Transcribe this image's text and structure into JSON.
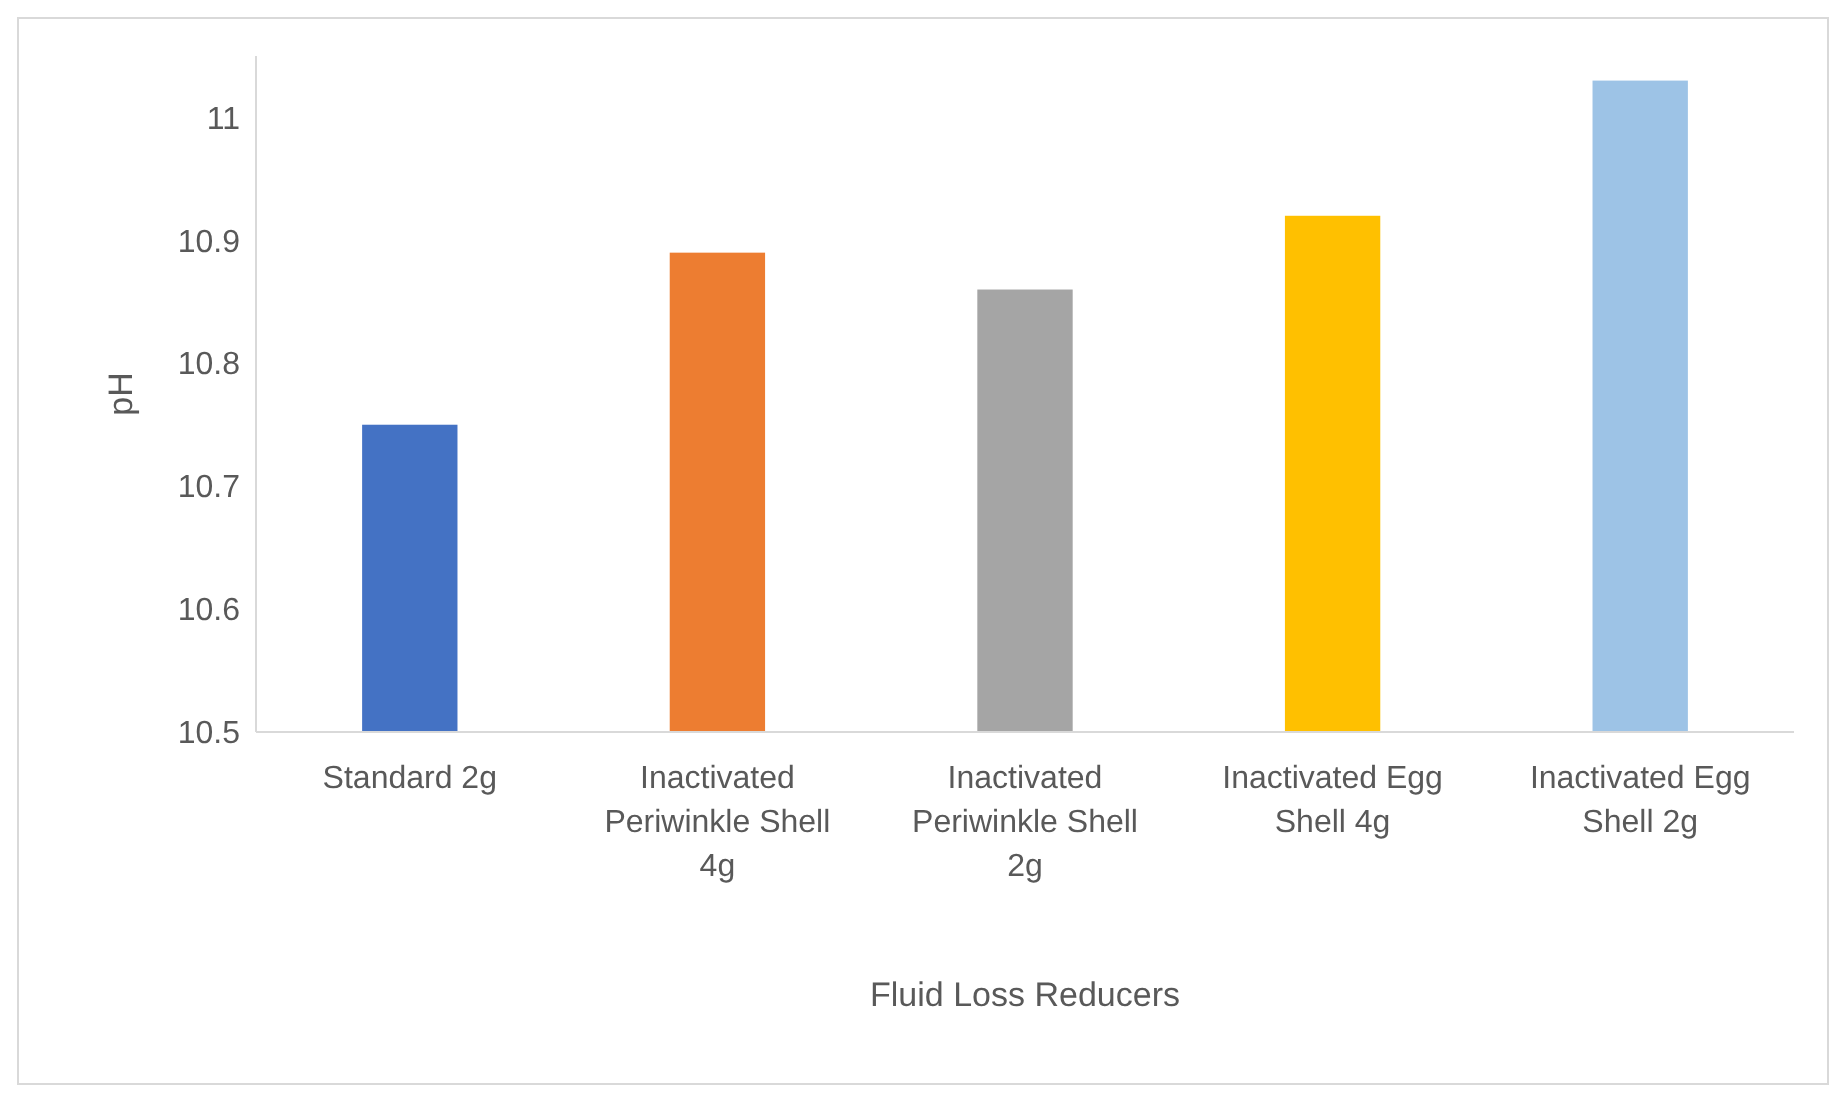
{
  "chart_data": {
    "type": "bar",
    "xlabel": "Fluid Loss Reducers",
    "ylabel": "pH",
    "categories": [
      "Standard 2g",
      "Inactivated Periwinkle Shell 4g",
      "Inactivated Periwinkle Shell 2g",
      "Inactivated Egg Shell 4g",
      "Inactivated Egg Shell 2g"
    ],
    "values": [
      10.75,
      10.89,
      10.86,
      10.92,
      11.03
    ],
    "colors": [
      "#4472c4",
      "#ed7d31",
      "#a5a5a5",
      "#ffc000",
      "#9dc3e6"
    ],
    "ylim": [
      10.5,
      11.05
    ],
    "yticks": [
      10.5,
      10.6,
      10.7,
      10.8,
      10.9,
      11
    ],
    "grid": false
  }
}
